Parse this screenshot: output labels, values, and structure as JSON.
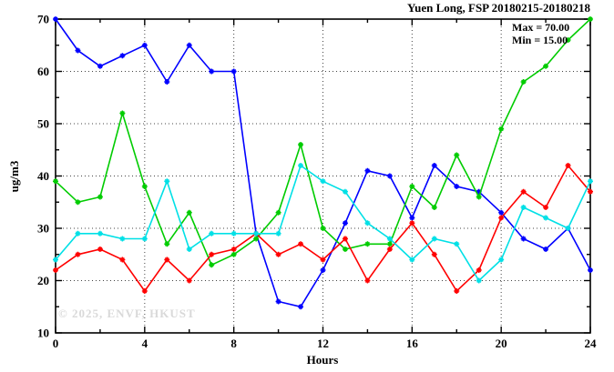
{
  "chart_data": {
    "type": "line",
    "title": "Yuen Long, FSP 20180215-20180218",
    "xlabel": "Hours",
    "ylabel": "ug/m3",
    "annotations": [
      "Max = 70.00",
      "Min = 15.00"
    ],
    "watermark": "© 2025, ENVF, HKUST",
    "xlim": [
      0,
      24
    ],
    "ylim": [
      10,
      70
    ],
    "x_major_ticks": [
      0,
      4,
      8,
      12,
      16,
      20,
      24
    ],
    "x_minor_step": 2,
    "y_major_ticks": [
      10,
      20,
      30,
      40,
      50,
      60,
      70
    ],
    "y_minor_step": 5,
    "grid": "dotted",
    "legend": "none",
    "x": [
      0,
      1,
      2,
      3,
      4,
      5,
      6,
      7,
      8,
      9,
      10,
      11,
      12,
      13,
      14,
      15,
      16,
      17,
      18,
      19,
      20,
      21,
      22,
      23,
      24
    ],
    "series": [
      {
        "name": "blue",
        "color": "#0000ff",
        "values": [
          70,
          64,
          61,
          63,
          65,
          58,
          65,
          60,
          60,
          29,
          16,
          15,
          22,
          31,
          41,
          40,
          32,
          42,
          38,
          37,
          33,
          28,
          26,
          30,
          22
        ]
      },
      {
        "name": "green",
        "color": "#00cc00",
        "values": [
          39,
          35,
          36,
          52,
          38,
          27,
          33,
          23,
          25,
          28,
          33,
          46,
          30,
          26,
          27,
          27,
          38,
          34,
          44,
          36,
          49,
          58,
          61,
          66,
          70
        ]
      },
      {
        "name": "red",
        "color": "#ff0000",
        "values": [
          22,
          25,
          26,
          24,
          18,
          24,
          20,
          25,
          26,
          29,
          25,
          27,
          24,
          28,
          20,
          26,
          31,
          25,
          18,
          22,
          32,
          37,
          34,
          42,
          37
        ]
      },
      {
        "name": "cyan",
        "color": "#00e0e6",
        "values": [
          24,
          29,
          29,
          28,
          28,
          39,
          26,
          29,
          29,
          29,
          29,
          42,
          39,
          37,
          31,
          28,
          24,
          28,
          27,
          20,
          24,
          34,
          32,
          30,
          39
        ]
      }
    ]
  }
}
